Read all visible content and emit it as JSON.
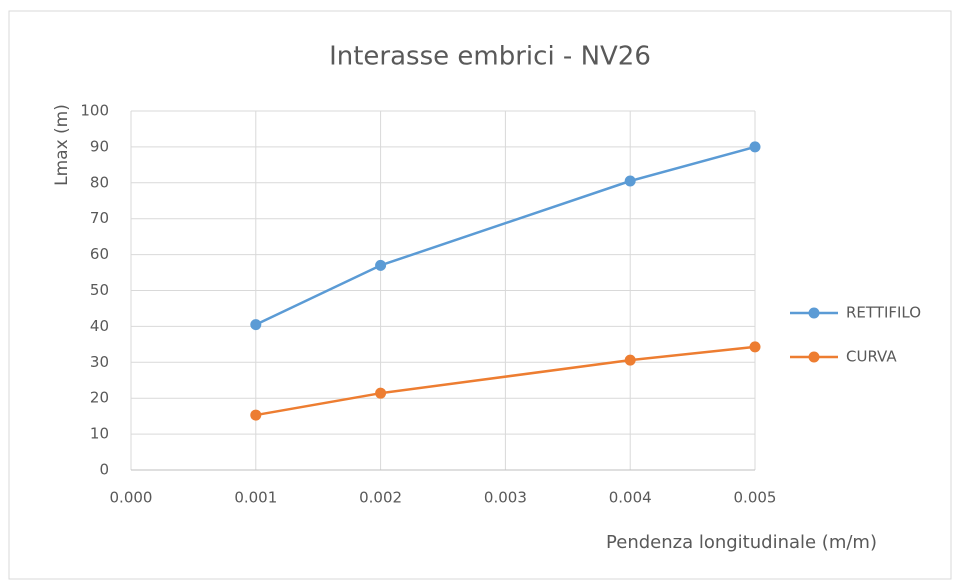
{
  "chart_data": {
    "type": "line",
    "title": "Interasse embrici  - NV26",
    "x_label": "Pendenza longitudinale (m/m)",
    "y_label": "Lmax (m)",
    "x": [
      0.001,
      0.002,
      0.004,
      0.005
    ],
    "series": [
      {
        "name": "RETTIFILO",
        "color": "#5b9bd5",
        "values": [
          40.5,
          57,
          80.5,
          90
        ]
      },
      {
        "name": "CURVA",
        "color": "#ed7d31",
        "values": [
          15.3,
          21.4,
          30.6,
          34.3
        ]
      }
    ],
    "xlim": [
      0,
      0.005
    ],
    "xticks": [
      {
        "value": 0,
        "label": "0.000"
      },
      0.001,
      0.002,
      0.003,
      0.004,
      0.005
    ],
    "ylim": [
      0,
      100
    ],
    "yticks": [
      0,
      10,
      20,
      30,
      40,
      50,
      60,
      70,
      80,
      90,
      100
    ],
    "grid": true,
    "legend": "right"
  }
}
